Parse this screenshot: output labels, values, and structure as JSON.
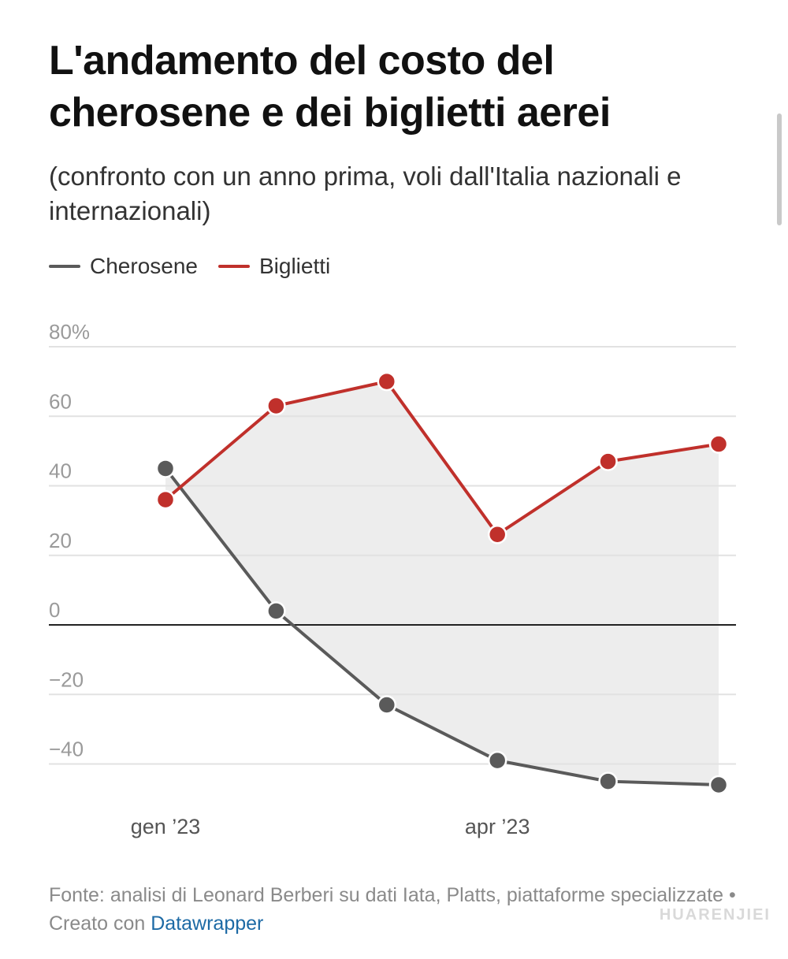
{
  "header": {
    "title": "L'andamento del costo del cherosene e dei biglietti aerei",
    "subtitle": "(confronto con un anno prima, voli dall'Italia nazionali e internazionali)"
  },
  "legend": {
    "items": [
      {
        "label": "Cherosene",
        "color": "#5a5a5a"
      },
      {
        "label": "Biglietti",
        "color": "#c0302b"
      }
    ]
  },
  "chart_data": {
    "type": "line",
    "title": "L'andamento del costo del cherosene e dei biglietti aerei",
    "subtitle": "(confronto con un anno prima, voli dall'Italia nazionali e internazionali)",
    "x": [
      0,
      1,
      2,
      3,
      4,
      5
    ],
    "x_tick_positions": [
      0,
      3
    ],
    "x_tick_labels": [
      "gen ’23",
      "apr ’23"
    ],
    "y_ticks": [
      80,
      60,
      40,
      20,
      0,
      -20,
      -40
    ],
    "y_tick_labels": [
      "80%",
      "60",
      "40",
      "20",
      "0",
      "−20",
      "−40"
    ],
    "ylim": [
      -48,
      82
    ],
    "series": [
      {
        "name": "Cherosene",
        "color": "#5a5a5a",
        "values": [
          45,
          4,
          -23,
          -39,
          -45,
          -46
        ]
      },
      {
        "name": "Biglietti",
        "color": "#c0302b",
        "values": [
          36,
          63,
          70,
          26,
          47,
          52
        ]
      }
    ],
    "fill_between": true,
    "fill_color": "#ededed",
    "grid": true,
    "legend": "top-left"
  },
  "footer": {
    "source_text": "Fonte: analisi di Leonard Berberi su dati Iata, Platts, piattaforme specializzate • Creato con ",
    "link_text": "Datawrapper"
  },
  "watermark": "HUARENJIEI"
}
